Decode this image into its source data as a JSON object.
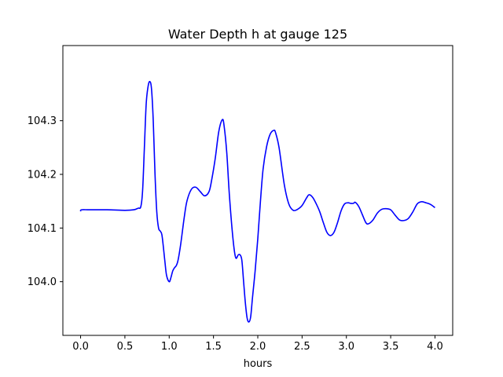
{
  "chart_data": {
    "type": "line",
    "title": "Water Depth h at gauge 125",
    "xlabel": "hours",
    "ylabel": "",
    "xlim": [
      -0.2,
      4.2
    ],
    "ylim": [
      103.9,
      104.44
    ],
    "grid": false,
    "line_color": "#0000ff",
    "x_ticks": [
      0.0,
      0.5,
      1.0,
      1.5,
      2.0,
      2.5,
      3.0,
      3.5,
      4.0
    ],
    "x_tick_labels": [
      "0.0",
      "0.5",
      "1.0",
      "1.5",
      "2.0",
      "2.5",
      "3.0",
      "3.5",
      "4.0"
    ],
    "y_ticks": [
      104.0,
      104.1,
      104.2,
      104.3
    ],
    "y_tick_labels": [
      "104.0",
      "104.1",
      "104.2",
      "104.3"
    ],
    "series": [
      {
        "x": [
          0.0,
          0.01,
          0.1,
          0.3,
          0.5,
          0.6,
          0.65,
          0.68,
          0.7,
          0.72,
          0.74,
          0.76,
          0.78,
          0.8,
          0.82,
          0.84,
          0.86,
          0.88,
          0.9,
          0.92,
          0.95,
          0.97,
          1.0,
          1.02,
          1.04,
          1.06,
          1.08,
          1.1,
          1.13,
          1.17,
          1.2,
          1.25,
          1.3,
          1.35,
          1.4,
          1.45,
          1.48,
          1.52,
          1.56,
          1.6,
          1.62,
          1.65,
          1.68,
          1.72,
          1.75,
          1.78,
          1.8,
          1.82,
          1.84,
          1.86,
          1.88,
          1.9,
          1.92,
          1.94,
          1.97,
          2.0,
          2.03,
          2.06,
          2.1,
          2.14,
          2.18,
          2.2,
          2.24,
          2.3,
          2.35,
          2.4,
          2.45,
          2.5,
          2.55,
          2.58,
          2.62,
          2.66,
          2.7,
          2.74,
          2.78,
          2.82,
          2.86,
          2.9,
          2.94,
          2.98,
          3.02,
          3.05,
          3.08,
          3.1,
          3.14,
          3.18,
          3.22,
          3.25,
          3.3,
          3.35,
          3.4,
          3.45,
          3.5,
          3.55,
          3.6,
          3.65,
          3.7,
          3.75,
          3.8,
          3.85,
          3.9,
          3.95,
          4.0
        ],
        "y": [
          104.131,
          104.134,
          104.134,
          104.134,
          104.133,
          104.134,
          104.137,
          104.14,
          104.17,
          104.25,
          104.33,
          104.362,
          104.373,
          104.36,
          104.3,
          104.2,
          104.13,
          104.1,
          104.094,
          104.085,
          104.04,
          104.012,
          104.0,
          104.008,
          104.02,
          104.026,
          104.03,
          104.04,
          104.07,
          104.12,
          104.15,
          104.172,
          104.176,
          104.168,
          104.16,
          104.168,
          104.19,
          104.23,
          104.28,
          104.302,
          104.29,
          104.24,
          104.16,
          104.08,
          104.045,
          104.05,
          104.05,
          104.04,
          104.0,
          103.96,
          103.932,
          103.925,
          103.935,
          103.97,
          104.02,
          104.08,
          104.15,
          104.21,
          104.252,
          104.275,
          104.282,
          104.278,
          104.25,
          104.18,
          104.145,
          104.133,
          104.135,
          104.142,
          104.156,
          104.162,
          104.157,
          104.145,
          104.13,
          104.11,
          104.092,
          104.086,
          104.092,
          104.11,
          104.132,
          104.145,
          104.147,
          104.146,
          104.146,
          104.148,
          104.14,
          104.125,
          104.11,
          104.108,
          104.115,
          104.128,
          104.135,
          104.136,
          104.134,
          104.124,
          104.115,
          104.114,
          104.118,
          104.13,
          104.145,
          104.149,
          104.147,
          104.144,
          104.138
        ]
      }
    ]
  }
}
